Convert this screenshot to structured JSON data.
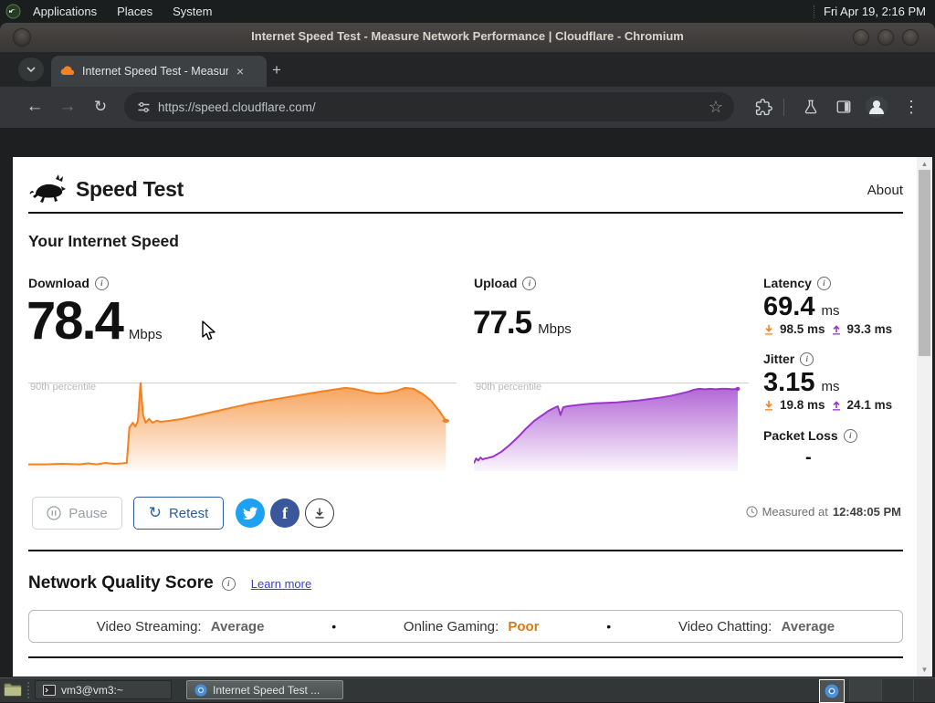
{
  "desktop": {
    "menubar": {
      "items": [
        "Applications",
        "Places",
        "System"
      ],
      "clock": "Fri Apr 19, 2:16 PM"
    },
    "taskbar": {
      "buttons": [
        {
          "label": "vm3@vm3:~"
        },
        {
          "label": "Internet Speed Test ..."
        }
      ]
    }
  },
  "window": {
    "title": "Internet Speed Test - Measure Network Performance | Cloudflare - Chromium"
  },
  "browser": {
    "tab": {
      "title": "Internet Speed Test - Measur"
    },
    "url": "https://speed.cloudflare.com/"
  },
  "icons": {
    "back": "←",
    "forward": "→",
    "reload": "↻",
    "star": "☆",
    "menu": "⋮",
    "plus": "+",
    "close": "×",
    "retest": "↻",
    "facebook": "f",
    "scroll_up": "▲",
    "scroll_down": "▼"
  },
  "page": {
    "brand": "Speed Test",
    "about": "About",
    "section_title": "Your Internet Speed",
    "download": {
      "label": "Download",
      "value": "78.4",
      "unit": "Mbps"
    },
    "upload": {
      "label": "Upload",
      "value": "77.5",
      "unit": "Mbps"
    },
    "latency": {
      "label": "Latency",
      "value": "69.4",
      "unit": "ms",
      "down": "98.5 ms",
      "up": "93.3 ms"
    },
    "jitter": {
      "label": "Jitter",
      "value": "3.15",
      "unit": "ms",
      "down": "19.8 ms",
      "up": "24.1 ms"
    },
    "packet_loss": {
      "label": "Packet Loss",
      "value": "-"
    },
    "buttons": {
      "pause": "Pause",
      "retest": "Retest"
    },
    "measured": {
      "prefix": "Measured at",
      "time": "12:48:05 PM"
    },
    "quality": {
      "title": "Network Quality Score",
      "learn_more": "Learn more",
      "separator": "•",
      "items": [
        {
          "label": "Video Streaming:",
          "value": "Average",
          "color": "#636363"
        },
        {
          "label": "Online Gaming:",
          "value": "Poor",
          "color": "#d8781a"
        },
        {
          "label": "Video Chatting:",
          "value": "Average",
          "color": "#636363"
        }
      ]
    }
  },
  "colors": {
    "download_accent": "#f48120",
    "upload_accent": "#9a36c9",
    "retest_blue": "#2b5d9e",
    "link_blue": "#3d3dcc",
    "twitter": "#1da1f2",
    "facebook": "#39579a"
  },
  "chart_data": [
    {
      "type": "area",
      "name": "download-speed-over-time",
      "annotation": "90th percentile",
      "color": "#f48120",
      "ylim": [
        0,
        100
      ],
      "percentile_line": 91,
      "x": [
        0,
        4,
        8,
        12,
        14,
        16,
        18,
        20,
        22,
        23,
        23.6,
        24.4,
        25,
        25.6,
        26.2,
        26.8,
        27.4,
        28.2,
        29,
        30,
        31,
        33,
        36,
        40,
        44,
        48,
        52,
        56,
        60,
        64,
        68,
        71,
        74,
        76,
        78,
        80,
        82,
        84,
        86,
        88,
        90,
        92,
        94,
        96,
        97.5
      ],
      "y": [
        7,
        7,
        7.5,
        7,
        8,
        7,
        8.5,
        7.5,
        8,
        8.5,
        45,
        50,
        46,
        52,
        91,
        58,
        50,
        54,
        50,
        52,
        51,
        52,
        54,
        58,
        62,
        66,
        70,
        73,
        76,
        79,
        82,
        84,
        86,
        85,
        83,
        81,
        80,
        81,
        83,
        86,
        85,
        80,
        73,
        62,
        52
      ]
    },
    {
      "type": "area",
      "name": "upload-speed-over-time",
      "annotation": "90th percentile",
      "color": "#9a36c9",
      "ylim": [
        0,
        100
      ],
      "percentile_line": 91,
      "x": [
        0,
        0.8,
        1.6,
        2.4,
        3.2,
        4,
        5,
        7,
        10,
        13,
        16,
        19,
        22,
        25,
        27,
        29,
        30.5,
        31.5,
        32.5,
        34,
        37,
        40,
        44,
        48,
        52,
        56,
        60,
        64,
        68,
        72,
        75,
        78,
        80,
        82,
        84,
        86,
        88,
        90,
        92,
        94,
        96
      ],
      "y": [
        8,
        13,
        11,
        14,
        12,
        13,
        13.5,
        15,
        20,
        27,
        35,
        44,
        52,
        58,
        62,
        65,
        67,
        58,
        66,
        67,
        68,
        69,
        70,
        70.5,
        71,
        72,
        73,
        74.5,
        76,
        78,
        80,
        82,
        84,
        85,
        84.5,
        85,
        84.5,
        85,
        85,
        84.5,
        85
      ]
    }
  ]
}
